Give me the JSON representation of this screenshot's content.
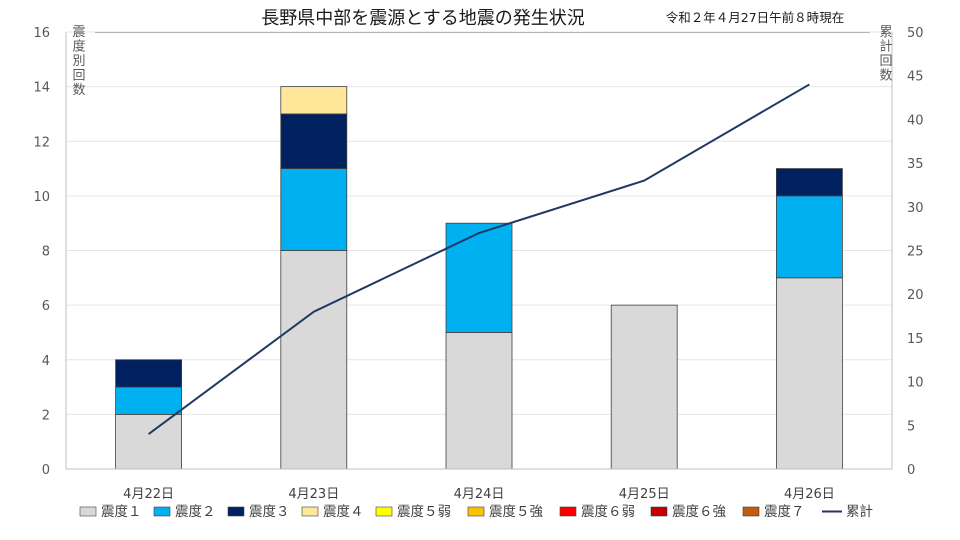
{
  "chart_data": {
    "type": "bar",
    "stacked": true,
    "title": "長野県中部を震源とする地震の発生状況",
    "date_note": "令和２年４月27日午前８時現在",
    "y_left_label": "震度別回数",
    "y_right_label": "累計回数",
    "y_left_range": [
      0,
      16
    ],
    "y_left_ticks": [
      "0",
      "2",
      "4",
      "6",
      "8",
      "10",
      "12",
      "14",
      "16"
    ],
    "y_right_range": [
      0,
      50
    ],
    "y_right_ticks": [
      "0",
      "5",
      "10",
      "15",
      "20",
      "25",
      "30",
      "35",
      "40",
      "45",
      "50"
    ],
    "grid": true,
    "legend_position": "bottom",
    "categories": [
      "4月22日",
      "4月23日",
      "4月24日",
      "4月25日",
      "4月26日"
    ],
    "series": [
      {
        "name": "震度１",
        "color": "#d9d9d9",
        "values": [
          2,
          8,
          5,
          6,
          7
        ]
      },
      {
        "name": "震度２",
        "color": "#00b0f0",
        "values": [
          1,
          3,
          4,
          0,
          3
        ]
      },
      {
        "name": "震度３",
        "color": "#002060",
        "values": [
          1,
          2,
          0,
          0,
          1
        ]
      },
      {
        "name": "震度４",
        "color": "#ffe699",
        "values": [
          0,
          1,
          0,
          0,
          0
        ]
      },
      {
        "name": "震度５弱",
        "color": "#ffff00",
        "values": [
          0,
          0,
          0,
          0,
          0
        ]
      },
      {
        "name": "震度５強",
        "color": "#ffc000",
        "values": [
          0,
          0,
          0,
          0,
          0
        ]
      },
      {
        "name": "震度６弱",
        "color": "#ff0000",
        "values": [
          0,
          0,
          0,
          0,
          0
        ]
      },
      {
        "name": "震度６強",
        "color": "#c00000",
        "values": [
          0,
          0,
          0,
          0,
          0
        ]
      },
      {
        "name": "震度７",
        "color": "#c55a11",
        "values": [
          0,
          0,
          0,
          0,
          0
        ]
      }
    ],
    "cumulative": {
      "name": "累計",
      "color": "#1f3864",
      "values": [
        4,
        18,
        27,
        33,
        44
      ]
    }
  }
}
